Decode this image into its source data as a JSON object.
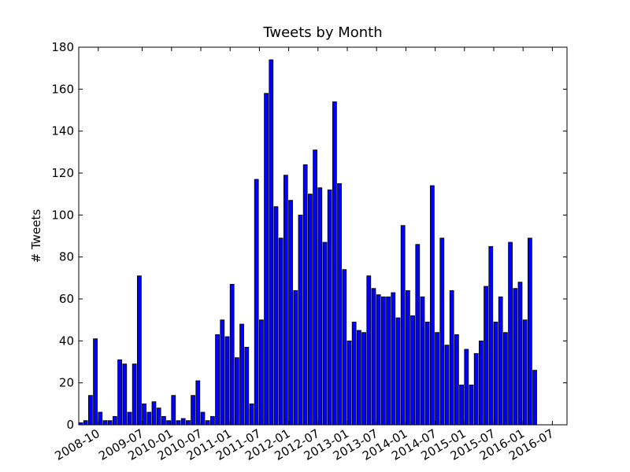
{
  "chart_data": {
    "type": "bar",
    "title": "Tweets by Month",
    "ylabel": "# Tweets",
    "color": "#0000ff",
    "x": [
      "2008-06",
      "2008-07",
      "2008-08",
      "2008-09",
      "2008-10",
      "2008-11",
      "2008-12",
      "2009-01",
      "2009-02",
      "2009-03",
      "2009-04",
      "2009-05",
      "2009-06",
      "2009-07",
      "2009-08",
      "2009-09",
      "2009-10",
      "2009-11",
      "2009-12",
      "2010-01",
      "2010-02",
      "2010-03",
      "2010-04",
      "2010-05",
      "2010-06",
      "2010-07",
      "2010-08",
      "2010-09",
      "2010-10",
      "2010-11",
      "2010-12",
      "2011-01",
      "2011-02",
      "2011-03",
      "2011-04",
      "2011-05",
      "2011-06",
      "2011-07",
      "2011-08",
      "2011-09",
      "2011-10",
      "2011-11",
      "2011-12",
      "2012-01",
      "2012-02",
      "2012-03",
      "2012-04",
      "2012-05",
      "2012-06",
      "2012-07",
      "2012-08",
      "2012-09",
      "2012-10",
      "2012-11",
      "2012-12",
      "2013-01",
      "2013-02",
      "2013-03",
      "2013-04",
      "2013-05",
      "2013-06",
      "2013-07",
      "2013-08",
      "2013-09",
      "2013-10",
      "2013-11",
      "2013-12",
      "2014-01",
      "2014-02",
      "2014-03",
      "2014-04",
      "2014-05",
      "2014-06",
      "2014-07",
      "2014-08",
      "2014-09",
      "2014-10",
      "2014-11",
      "2014-12",
      "2015-01",
      "2015-02",
      "2015-03",
      "2015-04",
      "2015-05",
      "2015-06",
      "2015-07",
      "2015-08",
      "2015-09",
      "2015-10",
      "2015-11",
      "2015-12",
      "2016-01",
      "2016-02",
      "2016-03"
    ],
    "values": [
      1,
      2,
      14,
      41,
      6,
      2,
      2,
      4,
      31,
      29,
      6,
      29,
      71,
      10,
      6,
      11,
      8,
      4,
      2,
      14,
      2,
      3,
      2,
      14,
      21,
      6,
      2,
      4,
      43,
      50,
      42,
      67,
      32,
      48,
      37,
      10,
      117,
      50,
      158,
      174,
      104,
      89,
      119,
      107,
      64,
      100,
      124,
      110,
      131,
      113,
      87,
      112,
      154,
      115,
      74,
      40,
      49,
      45,
      44,
      71,
      65,
      62,
      61,
      61,
      63,
      51,
      95,
      64,
      52,
      86,
      61,
      49,
      114,
      44,
      89,
      38,
      64,
      43,
      19,
      36,
      19,
      34,
      40,
      66,
      85,
      49,
      61,
      44,
      87,
      65,
      68,
      50,
      89,
      26
    ],
    "xlim": [
      "2008-06",
      "2016-10"
    ],
    "xticks": [
      "2008-10",
      "2009-07",
      "2010-01",
      "2010-07",
      "2011-01",
      "2011-07",
      "2012-01",
      "2012-07",
      "2013-01",
      "2013-07",
      "2014-01",
      "2014-07",
      "2015-01",
      "2015-07",
      "2016-01",
      "2016-07"
    ],
    "ylim": [
      0,
      180
    ],
    "yticks": [
      0,
      20,
      40,
      60,
      80,
      100,
      120,
      140,
      160,
      180
    ]
  }
}
